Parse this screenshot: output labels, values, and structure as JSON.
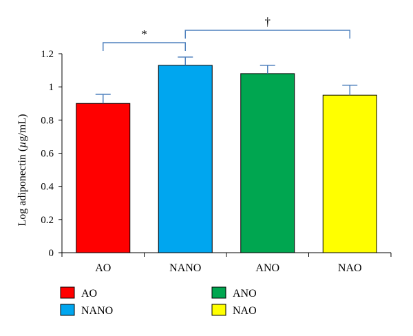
{
  "chart_data": {
    "type": "bar",
    "title": "",
    "xlabel": "",
    "ylabel": "Log adiponectin (µg/mL)",
    "ylabel_parts": [
      "Log adiponectin (",
      "µ",
      "g/mL)"
    ],
    "ylim": [
      0,
      1.2
    ],
    "yticks": [
      0,
      0.2,
      0.4,
      0.6,
      0.8,
      1,
      1.2
    ],
    "ytick_labels": [
      "0",
      "0.2",
      "0.4",
      "0.6",
      "0.8",
      "1",
      "1.2"
    ],
    "categories": [
      "AO",
      "NANO",
      "ANO",
      "NAO"
    ],
    "values": [
      0.9,
      1.13,
      1.08,
      0.95
    ],
    "errors": [
      0.055,
      0.05,
      0.05,
      0.06
    ],
    "colors": [
      "#ff0000",
      "#00a6ef",
      "#00a650",
      "#ffff00"
    ],
    "legend": {
      "placement": "bottom",
      "entries": [
        {
          "label": "AO",
          "color": "#ff0000"
        },
        {
          "label": "ANO",
          "color": "#00a650"
        },
        {
          "label": "NANO",
          "color": "#00a6ef"
        },
        {
          "label": "NAO",
          "color": "#ffff00"
        }
      ]
    },
    "annotations": [
      {
        "mark": "*",
        "from": "AO",
        "to": "NANO"
      },
      {
        "mark": "†",
        "from": "NANO",
        "to": "NAO"
      }
    ],
    "grid": false,
    "bracket_color": "#4f81bd"
  }
}
